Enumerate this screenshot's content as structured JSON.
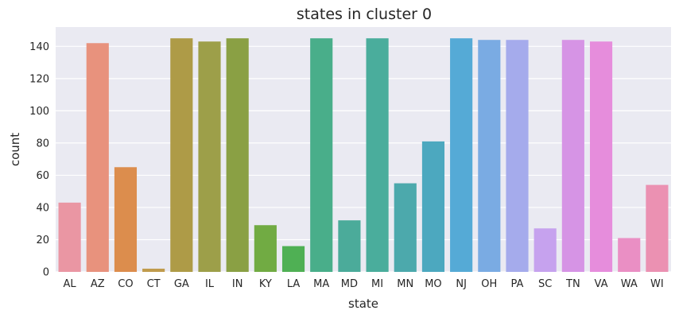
{
  "chart_data": {
    "type": "bar",
    "title": "states in cluster 0",
    "xlabel": "state",
    "ylabel": "count",
    "ylim": [
      0,
      152
    ],
    "yticks": [
      0,
      20,
      40,
      60,
      80,
      100,
      120,
      140
    ],
    "grid": true,
    "categories": [
      "AL",
      "AZ",
      "CO",
      "CT",
      "GA",
      "IL",
      "IN",
      "KY",
      "LA",
      "MA",
      "MD",
      "MI",
      "MN",
      "MO",
      "NJ",
      "OH",
      "PA",
      "SC",
      "TN",
      "VA",
      "WA",
      "WI"
    ],
    "values": [
      43,
      142,
      65,
      2,
      145,
      143,
      145,
      29,
      16,
      145,
      32,
      145,
      55,
      81,
      145,
      144,
      144,
      27,
      144,
      143,
      21,
      54
    ],
    "colors": [
      "#ea96a3",
      "#e8927d",
      "#dc8d4d",
      "#c09b4d",
      "#ae9b47",
      "#9d9f49",
      "#8aa044",
      "#71ab43",
      "#4fb054",
      "#49ae8a",
      "#4bab9a",
      "#4aad9c",
      "#4ca9ac",
      "#4ca8bf",
      "#55aad6",
      "#7aabe3",
      "#a5abec",
      "#c6a2ee",
      "#d694e5",
      "#e68ddc",
      "#ea8fc4",
      "#eb91b2"
    ],
    "background": "#eaeaf2",
    "gridline_color": "#ffffff"
  }
}
